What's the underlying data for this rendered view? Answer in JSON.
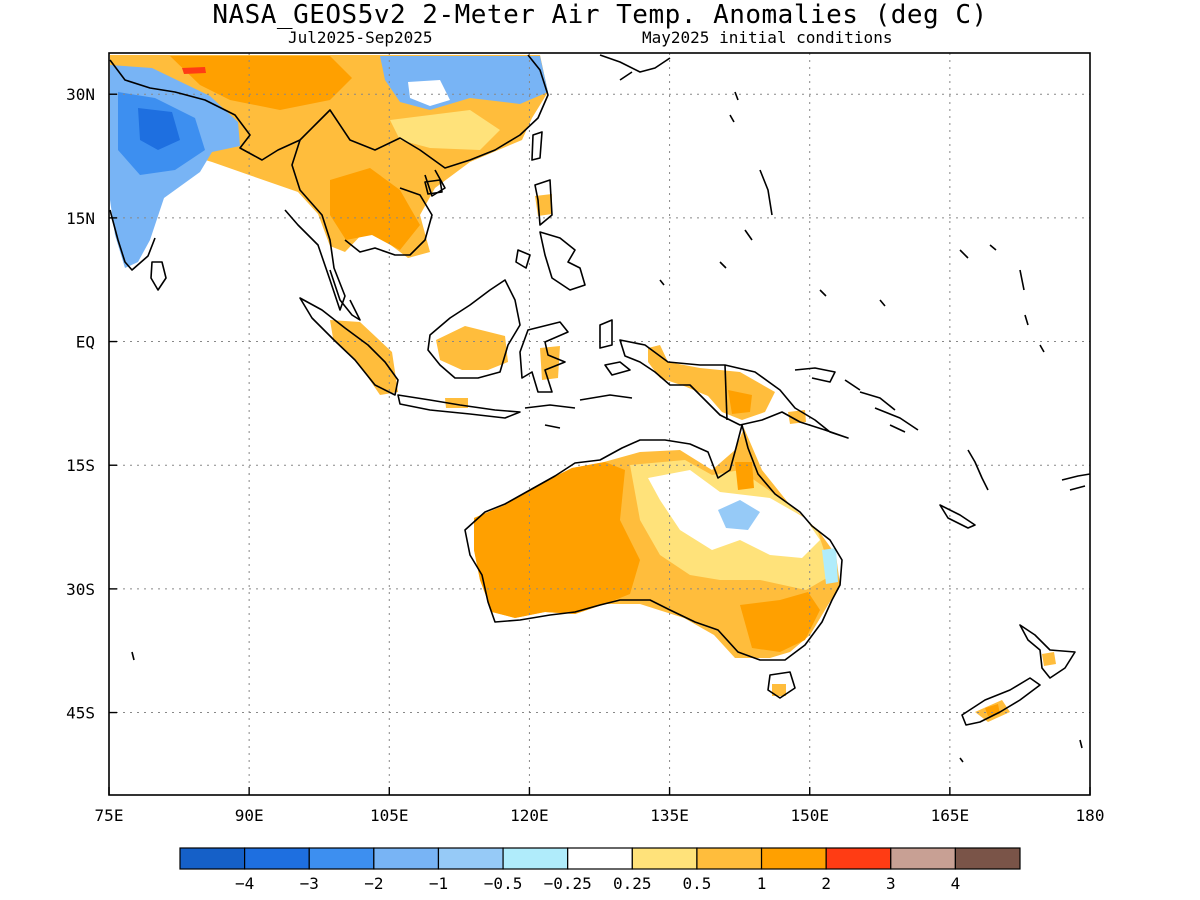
{
  "header": {
    "title": "NASA_GEOS5v2 2-Meter Air Temp. Anomalies (deg C)",
    "period": "Jul2025-Sep2025",
    "initial_conditions": "May2025 initial conditions"
  },
  "axes": {
    "lat_labels": [
      "30N",
      "15N",
      "EQ",
      "15S",
      "30S",
      "45S"
    ],
    "lat_values": [
      30,
      15,
      0,
      -15,
      -30,
      -45
    ],
    "lon_labels": [
      "75E",
      "90E",
      "105E",
      "120E",
      "135E",
      "150E",
      "165E",
      "180"
    ],
    "lon_values": [
      75,
      90,
      105,
      120,
      135,
      150,
      165,
      180
    ],
    "lat_range": [
      -55,
      35
    ],
    "lon_range": [
      75,
      180
    ],
    "grid": "dotted"
  },
  "colorbar": {
    "colors": [
      "#1560c8",
      "#1e6fe0",
      "#3d8ff0",
      "#78b4f5",
      "#96caf7",
      "#b0ecfb",
      "#ffffff",
      "#ffe27a",
      "#ffbd3c",
      "#ffa000",
      "#ff3c14",
      "#c8a094",
      "#7a5448"
    ],
    "labels": [
      "-4",
      "-3",
      "-2",
      "-1",
      "-0.5",
      "-0.25",
      "0.25",
      "0.5",
      "1",
      "2",
      "3",
      "4"
    ]
  }
}
